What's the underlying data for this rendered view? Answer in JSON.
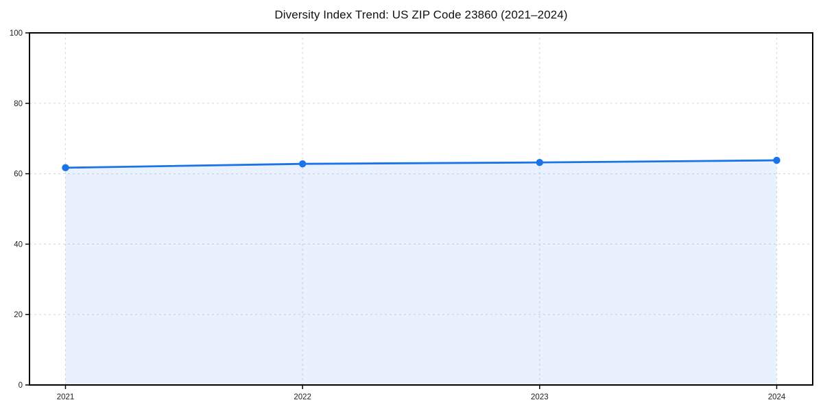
{
  "chart_data": {
    "type": "line",
    "title": "Diversity Index Trend: US ZIP Code 23860 (2021–2024)",
    "categories": [
      "2021",
      "2022",
      "2023",
      "2024"
    ],
    "series": [
      {
        "name": "Diversity Index",
        "values": [
          61.7,
          62.8,
          63.2,
          63.8
        ]
      }
    ],
    "xlabel": "",
    "ylabel": "",
    "ylim": [
      0,
      100
    ],
    "yticks": [
      0,
      20,
      40,
      60,
      80,
      100
    ],
    "grid": true,
    "grid_style": "dashed",
    "legend_position": "none",
    "area_fill": true,
    "marker": "circle",
    "colors": {
      "line": "#1a73e8",
      "marker": "#1a73e8",
      "area_fill": "rgba(26,115,232,0.10)",
      "grid": "#dcdcdc",
      "axis": "#000000",
      "background": "#ffffff",
      "title_text": "#111111",
      "tick_text": "#222222"
    }
  }
}
